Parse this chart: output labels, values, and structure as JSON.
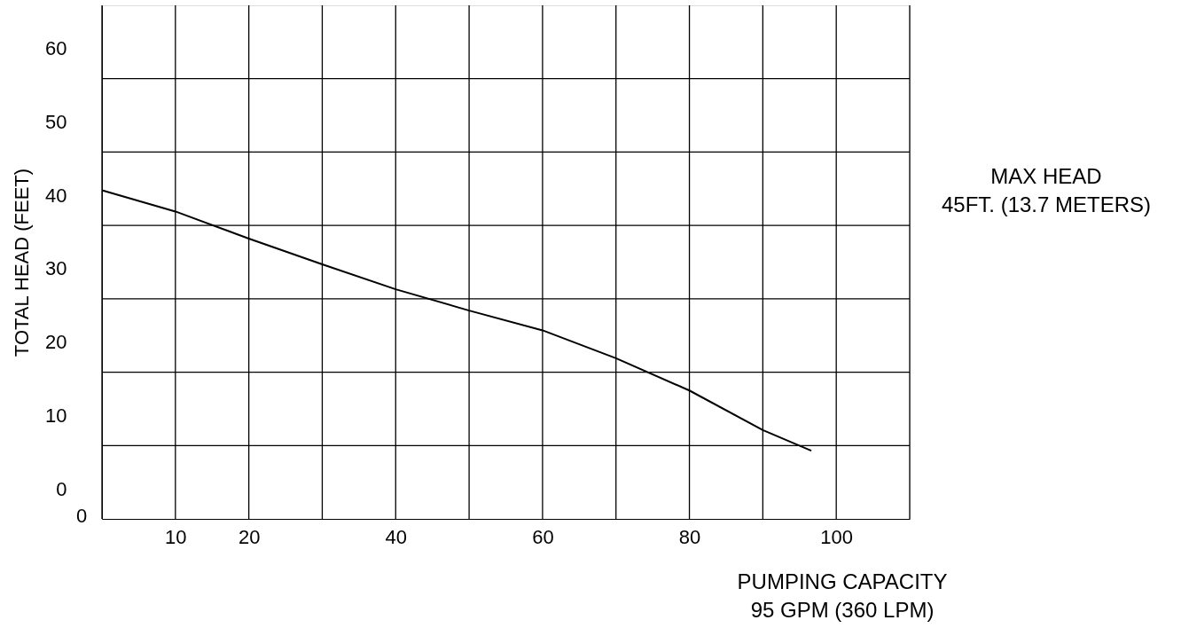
{
  "chart_data": {
    "type": "line",
    "ylabel": "TOTAL HEAD (FEET)",
    "annotations": [
      "MAX HEAD\n45FT. (13.7 METERS)",
      "PUMPING CAPACITY\n95 GPM (360 LPM)",
      "0"
    ],
    "x": [
      0,
      10,
      20,
      30,
      40,
      50,
      60,
      70,
      80,
      90,
      96.6
    ],
    "series": [
      {
        "color": "#000000",
        "values": [
          40.7,
          37.8,
          34.1,
          30.6,
          27.2,
          24.3,
          21.6,
          17.8,
          13.4,
          8.0,
          5.2
        ]
      }
    ],
    "xlim": [
      0,
      110
    ],
    "xticks": [
      {
        "value": 0,
        "label": null
      },
      10,
      20,
      {
        "value": 30,
        "label": null
      },
      40,
      {
        "value": 50,
        "label": null
      },
      60,
      {
        "value": 70,
        "label": null
      },
      80,
      {
        "value": 90,
        "label": null
      },
      100,
      {
        "value": 110,
        "label": null
      }
    ],
    "ylim": [
      -4.1,
      65.9
    ],
    "yticks": [
      0,
      10,
      20,
      30,
      40,
      50,
      60,
      {
        "value": 5.9,
        "label": null
      },
      {
        "value": 15.9,
        "label": null
      },
      {
        "value": 25.9,
        "label": null
      },
      {
        "value": 35.9,
        "label": null
      },
      {
        "value": 45.9,
        "label": null
      },
      {
        "value": 55.9,
        "label": null
      }
    ],
    "grid": true,
    "marker": "none",
    "line_style": "solid"
  }
}
